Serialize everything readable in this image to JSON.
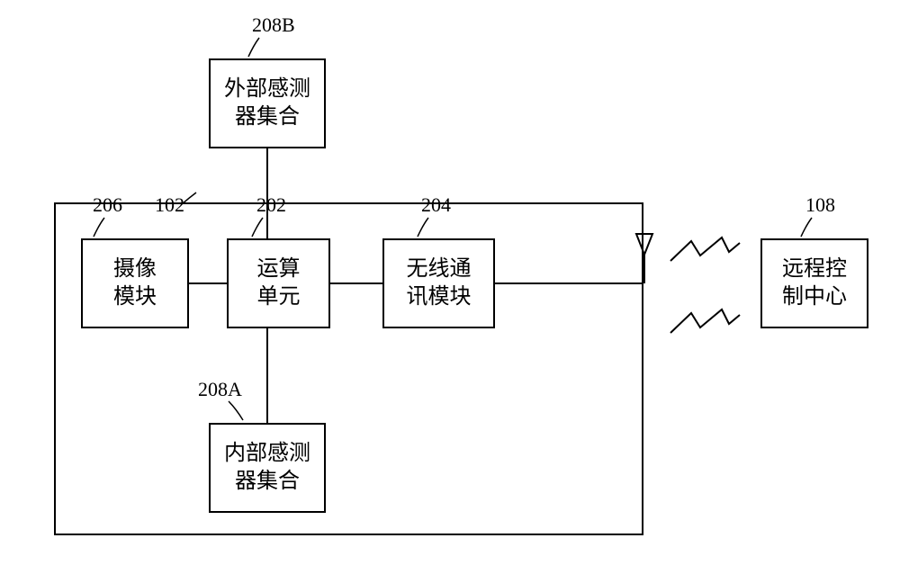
{
  "diagram": {
    "font_family": "SimSun",
    "stroke_color": "#000000",
    "background_color": "#ffffff",
    "box_border_width": 2,
    "label_font_size": 22,
    "box_font_size": 24,
    "labels": {
      "l208B": "208B",
      "l206": "206",
      "l102": "102",
      "l202": "202",
      "l204": "204",
      "l108": "108",
      "l208A": "208A"
    },
    "boxes": {
      "ext_sensor": {
        "text": "外部感测\n器集合"
      },
      "camera": {
        "text": "摄像\n模块"
      },
      "compute": {
        "text": "运算\n单元"
      },
      "wireless": {
        "text": "无线通\n讯模块"
      },
      "remote": {
        "text": "远程控\n制中心"
      },
      "int_sensor": {
        "text": "内部感测\n器集合"
      }
    }
  }
}
